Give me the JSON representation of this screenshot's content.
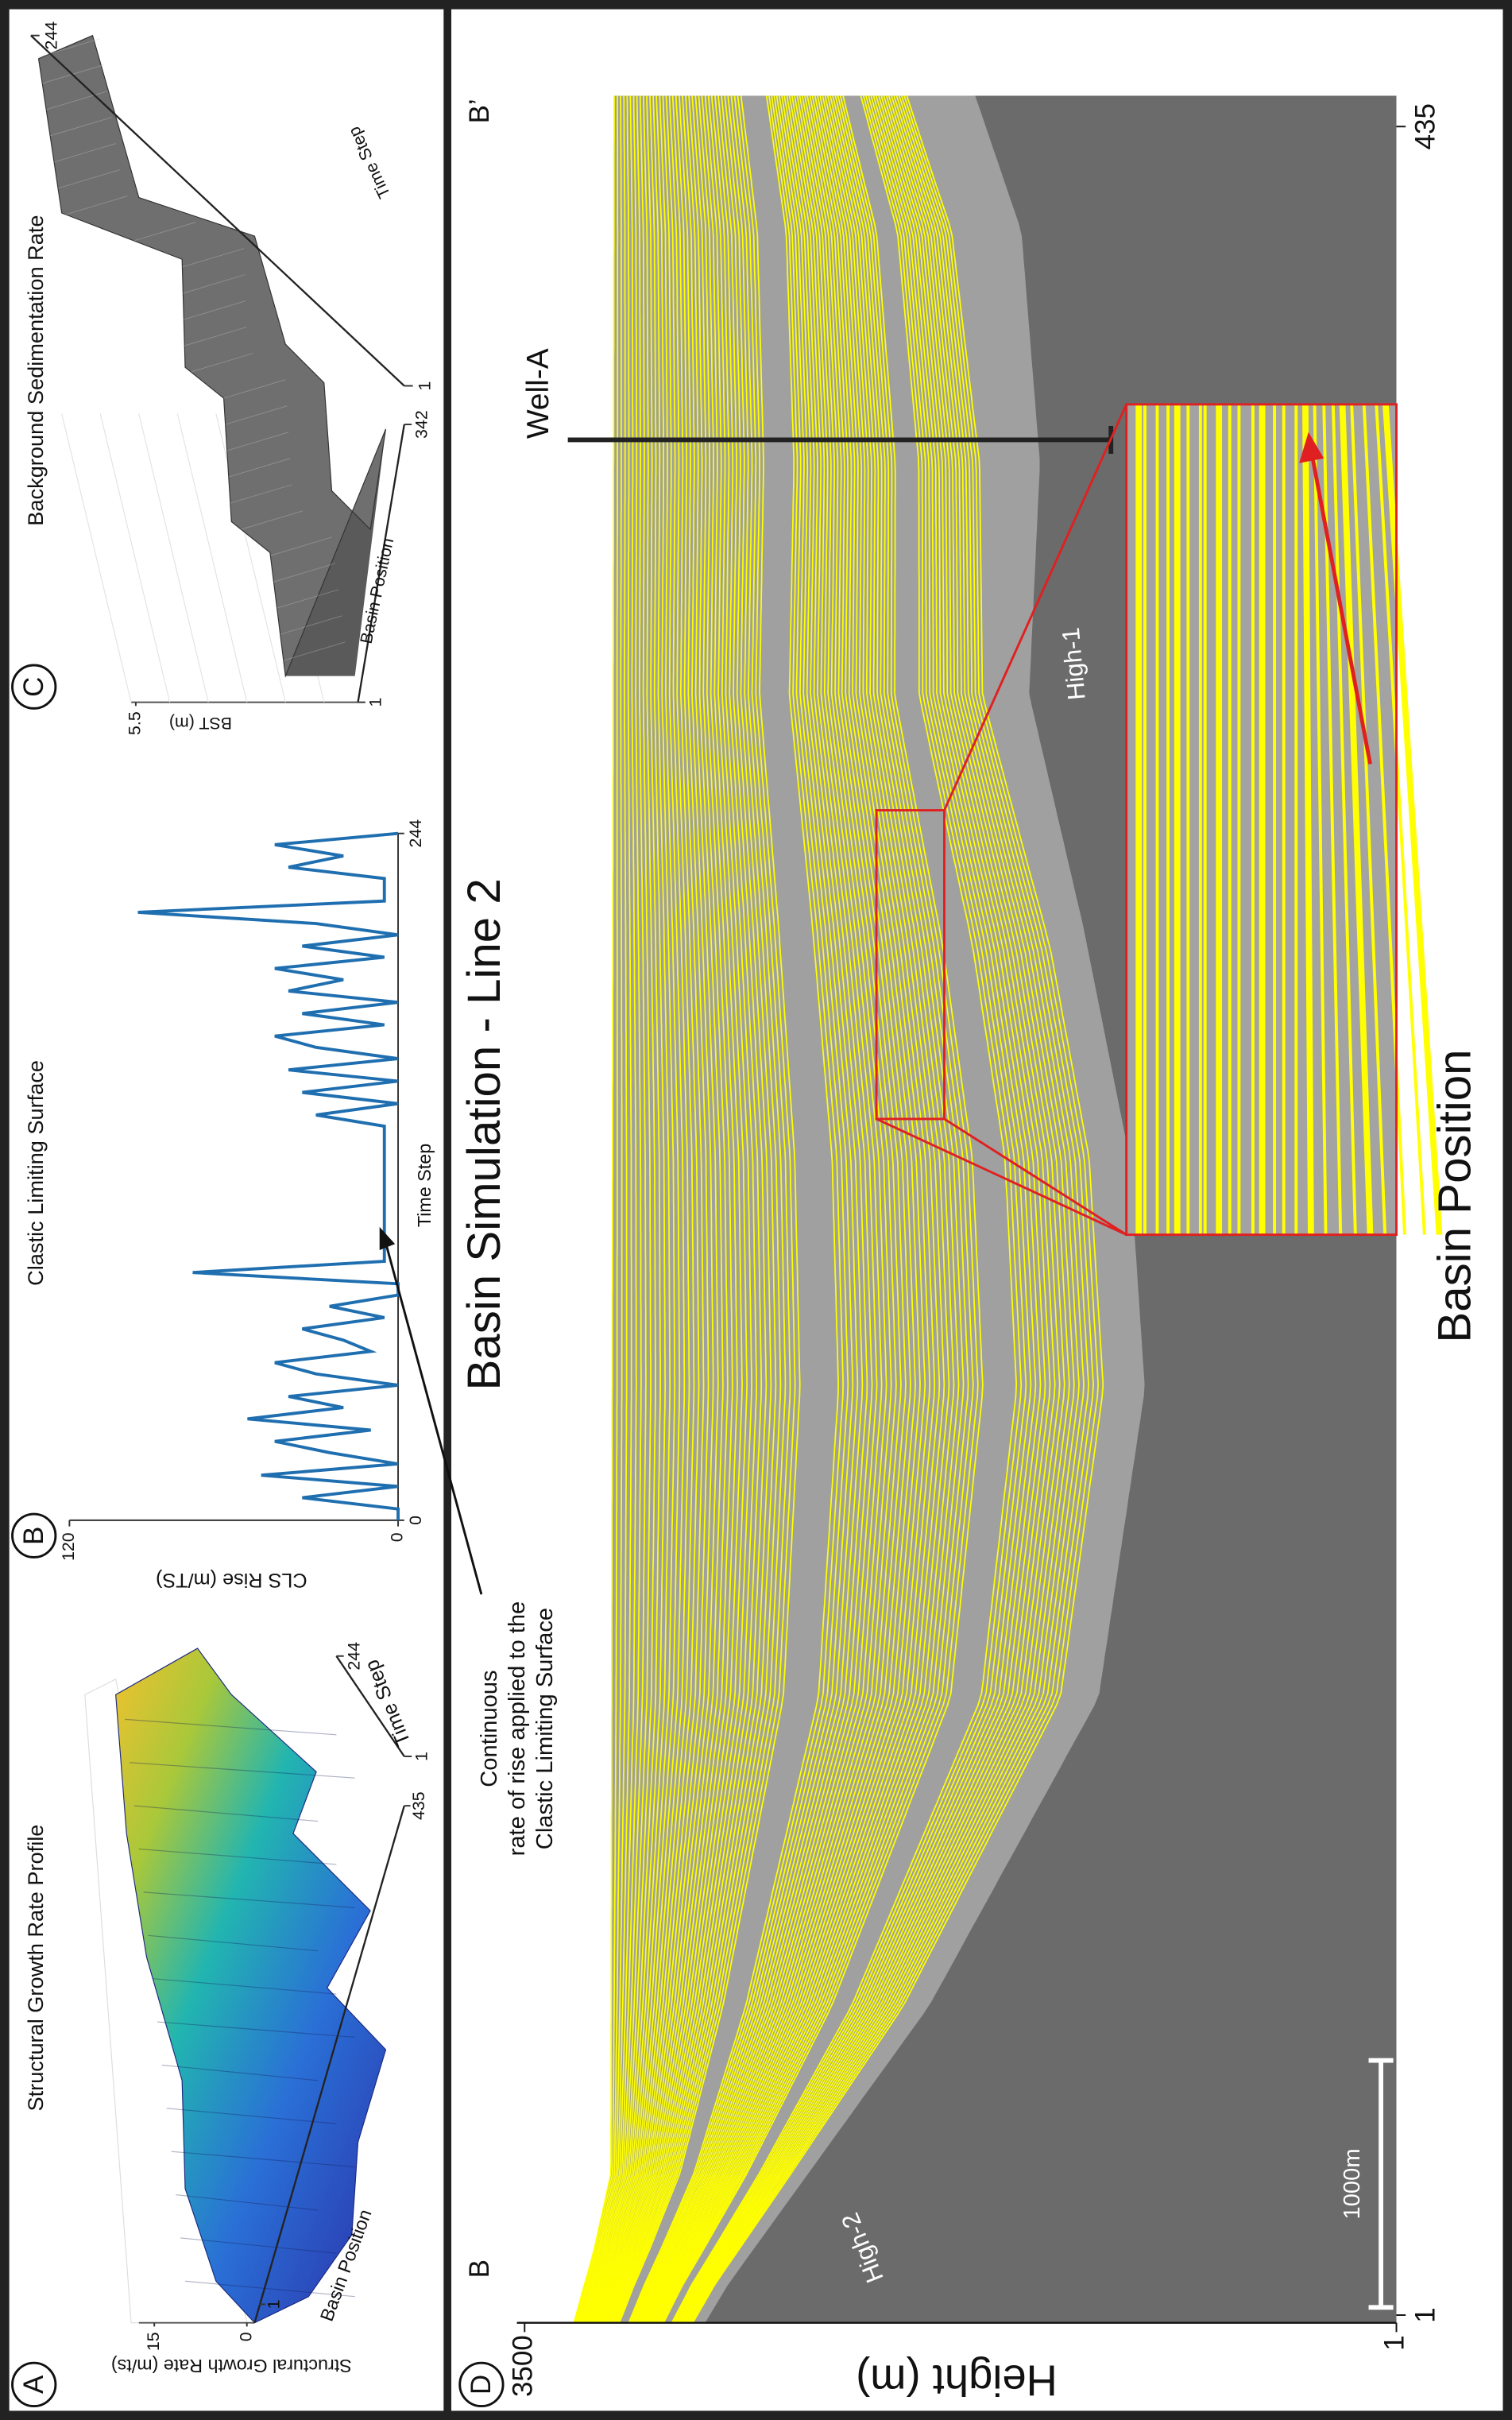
{
  "chart_data": [
    {
      "type": "surface",
      "panel": "A",
      "title": "Structural Growth Rate Profile",
      "zlabel": "Structural Growth Rate (m/ts)",
      "xlabel": "Basin Position",
      "ylabel": "Time Step",
      "xlim": [
        1,
        435
      ],
      "xticks": [
        1,
        435
      ],
      "ylim": [
        1,
        244
      ],
      "yticks": [
        1,
        244
      ],
      "zlim": [
        0,
        15
      ],
      "zticks": [
        0,
        15
      ]
    },
    {
      "type": "line",
      "panel": "B",
      "title": "Clastic Limiting Surface",
      "xlabel": "Time Step",
      "ylabel": "CLS Rise (m/TS)",
      "color": "#1f6fb0",
      "x": [
        0,
        4,
        8,
        12,
        16,
        20,
        24,
        28,
        32,
        36,
        40,
        44,
        48,
        52,
        56,
        60,
        64,
        68,
        72,
        76,
        80,
        84,
        88,
        92,
        96,
        100,
        104,
        108,
        112,
        116,
        120,
        124,
        128,
        132,
        136,
        140,
        144,
        148,
        152,
        156,
        160,
        164,
        168,
        172,
        176,
        180,
        184,
        188,
        192,
        196,
        200,
        204,
        208,
        212,
        216,
        220,
        224,
        228,
        232,
        236,
        240,
        244
      ],
      "values": [
        0,
        0,
        35,
        0,
        50,
        0,
        25,
        45,
        10,
        55,
        20,
        40,
        0,
        30,
        45,
        10,
        20,
        35,
        5,
        25,
        0,
        0,
        75,
        5,
        5,
        5,
        5,
        5,
        5,
        5,
        5,
        5,
        5,
        5,
        5,
        5,
        30,
        0,
        35,
        0,
        40,
        0,
        30,
        45,
        5,
        35,
        0,
        40,
        20,
        45,
        5,
        35,
        0,
        30,
        95,
        5,
        5,
        5,
        40,
        20,
        45,
        0
      ],
      "xlim": [
        0,
        244
      ],
      "xticks": [
        0,
        244
      ],
      "ylim": [
        0,
        120
      ],
      "yticks": [
        0,
        120
      ],
      "annotation": [
        "Continuous",
        "rate of rise applied to the",
        "Clastic Limiting Surface"
      ]
    },
    {
      "type": "surface",
      "panel": "C",
      "title": "Background Sedimentation Rate",
      "zlabel": "BST (m)",
      "xlabel": "Basin Position",
      "ylabel": "Time Step",
      "xlim": [
        1,
        342
      ],
      "xticks": [
        1,
        342
      ],
      "ylim": [
        1,
        244
      ],
      "yticks": [
        1,
        244
      ],
      "zticks": [
        5.5
      ]
    },
    {
      "type": "cross-section",
      "panel": "D",
      "title": "Basin Simulation - Line 2",
      "xlabel": "Basin Position",
      "ylabel": "Height (m)",
      "xlim": [
        1,
        435
      ],
      "xticks": [
        1,
        435
      ],
      "ylim": [
        1,
        3500
      ],
      "yticks": [
        1,
        3500
      ],
      "section_start": "B",
      "section_end": "B’",
      "labels": [
        "High-2",
        "High-1"
      ],
      "well": "Well-A",
      "scale_bar": "1000m"
    }
  ]
}
